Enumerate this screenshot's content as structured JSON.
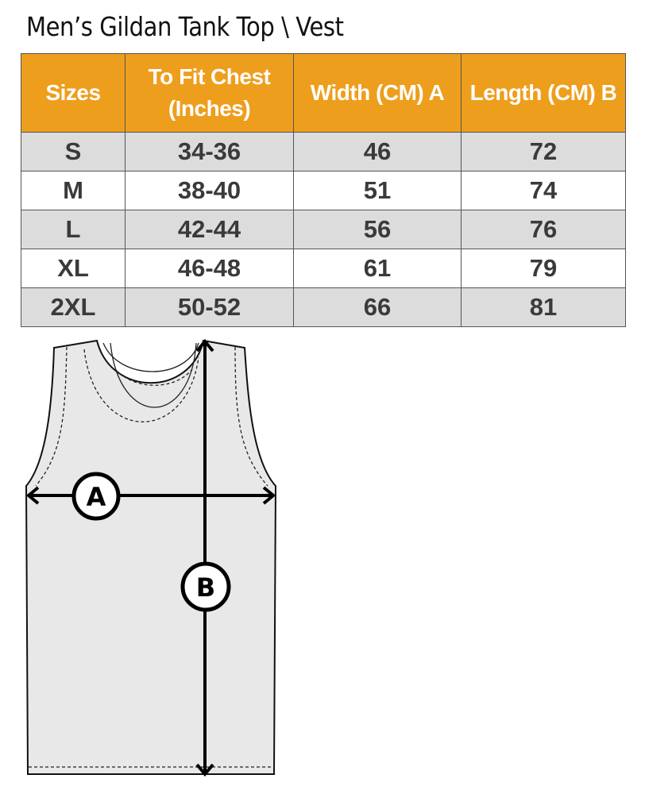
{
  "title": "Men’s Gildan Tank Top \\ Vest",
  "table": {
    "headers": [
      "Sizes",
      "To Fit Chest (Inches)",
      "Width (CM) A",
      "Length  (CM) B"
    ],
    "rows": [
      [
        "S",
        "34-36",
        "46",
        "72"
      ],
      [
        "M",
        "38-40",
        "51",
        "74"
      ],
      [
        "L",
        "42-44",
        "56",
        "76"
      ],
      [
        "XL",
        "46-48",
        "61",
        "79"
      ],
      [
        "2XL",
        "50-52",
        "66",
        "81"
      ]
    ]
  },
  "diagram": {
    "label_a": "A",
    "label_b": "B"
  },
  "colors": {
    "header": "#EE9E1D",
    "row_alt": "#dcdcdc"
  }
}
